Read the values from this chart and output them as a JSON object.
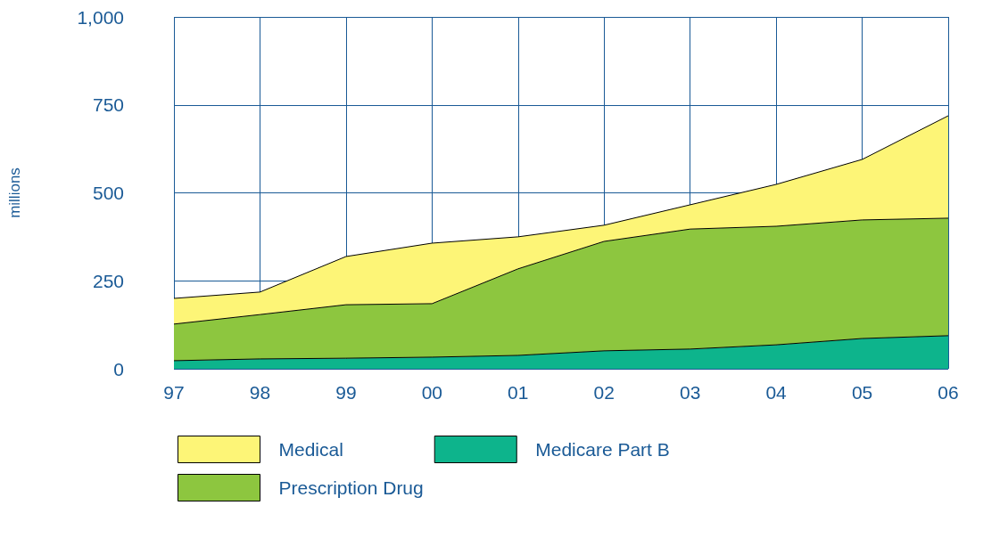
{
  "chart_data": {
    "type": "area",
    "ylabel": "millions",
    "categories": [
      "97",
      "98",
      "99",
      "00",
      "01",
      "02",
      "03",
      "04",
      "05",
      "06"
    ],
    "stacked": true,
    "ylim": [
      0,
      1000
    ],
    "yticks": [
      0,
      250,
      500,
      750,
      {
        "value": 1000,
        "label": "1,000"
      }
    ],
    "grid": true,
    "legend": "bottom",
    "series": [
      {
        "name": "Medicare Part B",
        "color": "#0db48c",
        "values": [
          23,
          28,
          30,
          33,
          38,
          51,
          56,
          68,
          86,
          94
        ]
      },
      {
        "name": "Prescription Drug",
        "color": "#8dc63f",
        "values": [
          104,
          126,
          152,
          152,
          246,
          311,
          341,
          337,
          337,
          334
        ]
      },
      {
        "name": "Medical",
        "color": "#fdf577",
        "values": [
          73,
          64,
          137,
          172,
          91,
          46,
          69,
          119,
          172,
          291
        ]
      }
    ]
  }
}
